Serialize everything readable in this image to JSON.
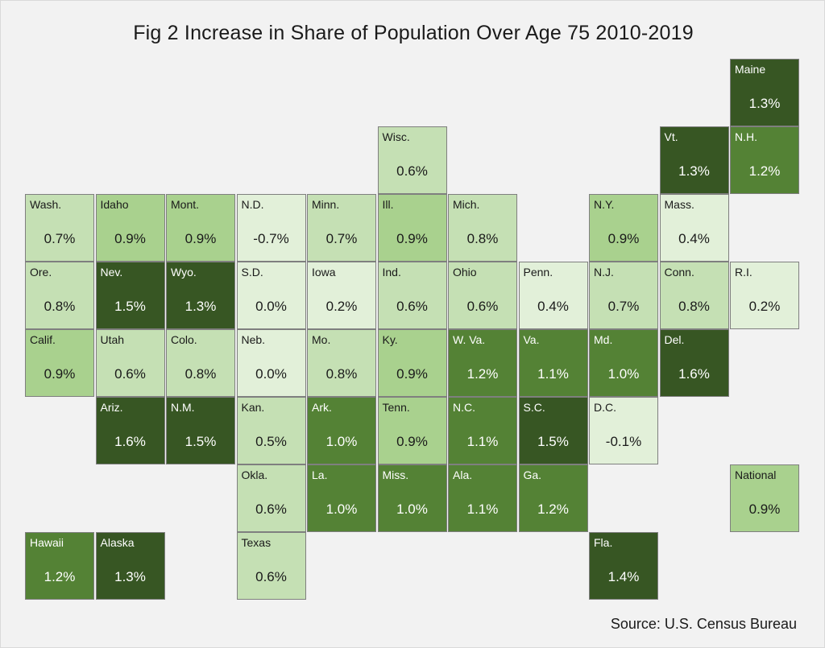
{
  "chart_data": {
    "type": "tile-map",
    "title": "Fig 2 Increase in Share of Population Over Age 75 2010-2019",
    "source": "Source: U.S. Census Bureau",
    "tiles": [
      {
        "name": "Maine",
        "value": "1.3%",
        "col": 10,
        "row": 0
      },
      {
        "name": "Wisc.",
        "value": "0.6%",
        "col": 5,
        "row": 1
      },
      {
        "name": "Vt.",
        "value": "1.3%",
        "col": 9,
        "row": 1
      },
      {
        "name": "N.H.",
        "value": "1.2%",
        "col": 10,
        "row": 1
      },
      {
        "name": "Wash.",
        "value": "0.7%",
        "col": 0,
        "row": 2
      },
      {
        "name": "Idaho",
        "value": "0.9%",
        "col": 1,
        "row": 2
      },
      {
        "name": "Mont.",
        "value": "0.9%",
        "col": 2,
        "row": 2
      },
      {
        "name": "N.D.",
        "value": "-0.7%",
        "col": 3,
        "row": 2
      },
      {
        "name": "Minn.",
        "value": "0.7%",
        "col": 4,
        "row": 2
      },
      {
        "name": "Ill.",
        "value": "0.9%",
        "col": 5,
        "row": 2
      },
      {
        "name": "Mich.",
        "value": "0.8%",
        "col": 6,
        "row": 2
      },
      {
        "name": "N.Y.",
        "value": "0.9%",
        "col": 8,
        "row": 2
      },
      {
        "name": "Mass.",
        "value": "0.4%",
        "col": 9,
        "row": 2
      },
      {
        "name": "Ore.",
        "value": "0.8%",
        "col": 0,
        "row": 3
      },
      {
        "name": "Nev.",
        "value": "1.5%",
        "col": 1,
        "row": 3
      },
      {
        "name": "Wyo.",
        "value": "1.3%",
        "col": 2,
        "row": 3
      },
      {
        "name": "S.D.",
        "value": "0.0%",
        "col": 3,
        "row": 3
      },
      {
        "name": "Iowa",
        "value": "0.2%",
        "col": 4,
        "row": 3
      },
      {
        "name": "Ind.",
        "value": "0.6%",
        "col": 5,
        "row": 3
      },
      {
        "name": "Ohio",
        "value": "0.6%",
        "col": 6,
        "row": 3
      },
      {
        "name": "Penn.",
        "value": "0.4%",
        "col": 7,
        "row": 3
      },
      {
        "name": "N.J.",
        "value": "0.7%",
        "col": 8,
        "row": 3
      },
      {
        "name": "Conn.",
        "value": "0.8%",
        "col": 9,
        "row": 3
      },
      {
        "name": "R.I.",
        "value": "0.2%",
        "col": 10,
        "row": 3
      },
      {
        "name": "Calif.",
        "value": "0.9%",
        "col": 0,
        "row": 4
      },
      {
        "name": "Utah",
        "value": "0.6%",
        "col": 1,
        "row": 4
      },
      {
        "name": "Colo.",
        "value": "0.8%",
        "col": 2,
        "row": 4
      },
      {
        "name": "Neb.",
        "value": "0.0%",
        "col": 3,
        "row": 4
      },
      {
        "name": "Mo.",
        "value": "0.8%",
        "col": 4,
        "row": 4
      },
      {
        "name": "Ky.",
        "value": "0.9%",
        "col": 5,
        "row": 4
      },
      {
        "name": "W. Va.",
        "value": "1.2%",
        "col": 6,
        "row": 4
      },
      {
        "name": "Va.",
        "value": "1.1%",
        "col": 7,
        "row": 4
      },
      {
        "name": "Md.",
        "value": "1.0%",
        "col": 8,
        "row": 4
      },
      {
        "name": "Del.",
        "value": "1.6%",
        "col": 9,
        "row": 4
      },
      {
        "name": "Ariz.",
        "value": "1.6%",
        "col": 1,
        "row": 5
      },
      {
        "name": "N.M.",
        "value": "1.5%",
        "col": 2,
        "row": 5
      },
      {
        "name": "Kan.",
        "value": "0.5%",
        "col": 3,
        "row": 5
      },
      {
        "name": "Ark.",
        "value": "1.0%",
        "col": 4,
        "row": 5
      },
      {
        "name": "Tenn.",
        "value": "0.9%",
        "col": 5,
        "row": 5
      },
      {
        "name": "N.C.",
        "value": "1.1%",
        "col": 6,
        "row": 5
      },
      {
        "name": "S.C.",
        "value": "1.5%",
        "col": 7,
        "row": 5
      },
      {
        "name": "D.C.",
        "value": "-0.1%",
        "col": 8,
        "row": 5
      },
      {
        "name": "Okla.",
        "value": "0.6%",
        "col": 3,
        "row": 6
      },
      {
        "name": "La.",
        "value": "1.0%",
        "col": 4,
        "row": 6
      },
      {
        "name": "Miss.",
        "value": "1.0%",
        "col": 5,
        "row": 6
      },
      {
        "name": "Ala.",
        "value": "1.1%",
        "col": 6,
        "row": 6
      },
      {
        "name": "Ga.",
        "value": "1.2%",
        "col": 7,
        "row": 6
      },
      {
        "name": "National",
        "value": "0.9%",
        "col": 10,
        "row": 6
      },
      {
        "name": "Hawaii",
        "value": "1.2%",
        "col": 0,
        "row": 7
      },
      {
        "name": "Alaska",
        "value": "1.3%",
        "col": 1,
        "row": 7
      },
      {
        "name": "Texas",
        "value": "0.6%",
        "col": 3,
        "row": 7
      },
      {
        "name": "Fla.",
        "value": "1.4%",
        "col": 8,
        "row": 7
      }
    ],
    "color_scale": [
      {
        "min": -99,
        "fill": "#e2f0d9",
        "text": "#1a1a1a"
      },
      {
        "min": 0.5,
        "fill": "#c5e0b4",
        "text": "#1a1a1a"
      },
      {
        "min": 0.9,
        "fill": "#a9d18e",
        "text": "#1a1a1a"
      },
      {
        "min": 1.0,
        "fill": "#548235",
        "text": "#ffffff"
      },
      {
        "min": 1.3,
        "fill": "#375623",
        "text": "#ffffff"
      }
    ]
  }
}
